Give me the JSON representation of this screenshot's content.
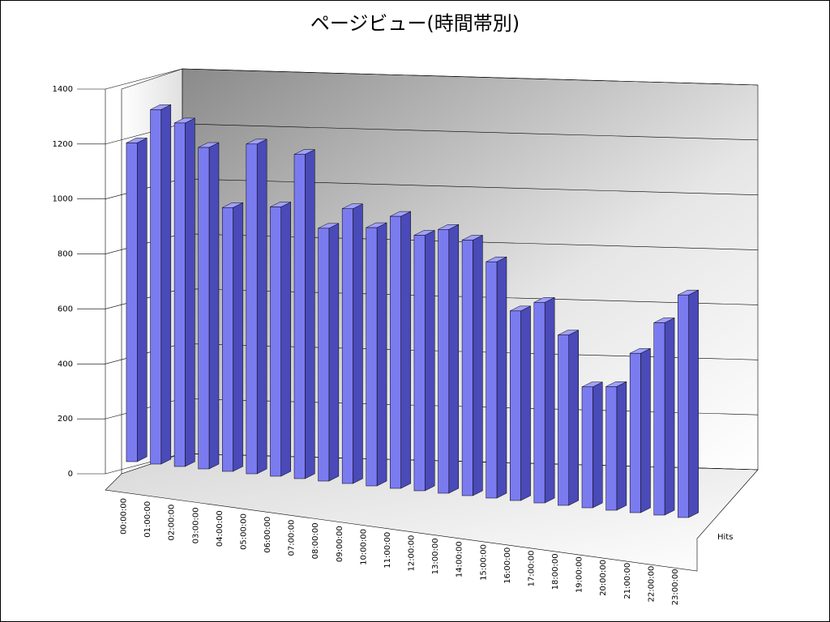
{
  "chart_data": {
    "type": "bar3d",
    "title": "ページビュー(時間帯別)",
    "categories": [
      "00:00:00",
      "01:00:00",
      "02:00:00",
      "03:00:00",
      "04:00:00",
      "05:00:00",
      "06:00:00",
      "07:00:00",
      "08:00:00",
      "09:00:00",
      "10:00:00",
      "11:00:00",
      "12:00:00",
      "13:00:00",
      "14:00:00",
      "15:00:00",
      "16:00:00",
      "17:00:00",
      "18:00:00",
      "19:00:00",
      "20:00:00",
      "21:00:00",
      "22:00:00",
      "23:00:00"
    ],
    "series": [
      {
        "name": "Hits",
        "color": "#7b7bf0",
        "values": [
          1160,
          1290,
          1250,
          1170,
          960,
          1200,
          980,
          1180,
          920,
          1000,
          940,
          990,
          930,
          960,
          930,
          860,
          690,
          730,
          620,
          440,
          450,
          580,
          700,
          810
        ]
      }
    ],
    "ylim": [
      0,
      1400
    ],
    "yticks": [
      0,
      200,
      400,
      600,
      800,
      1000,
      1200,
      1400
    ],
    "grid": true
  }
}
